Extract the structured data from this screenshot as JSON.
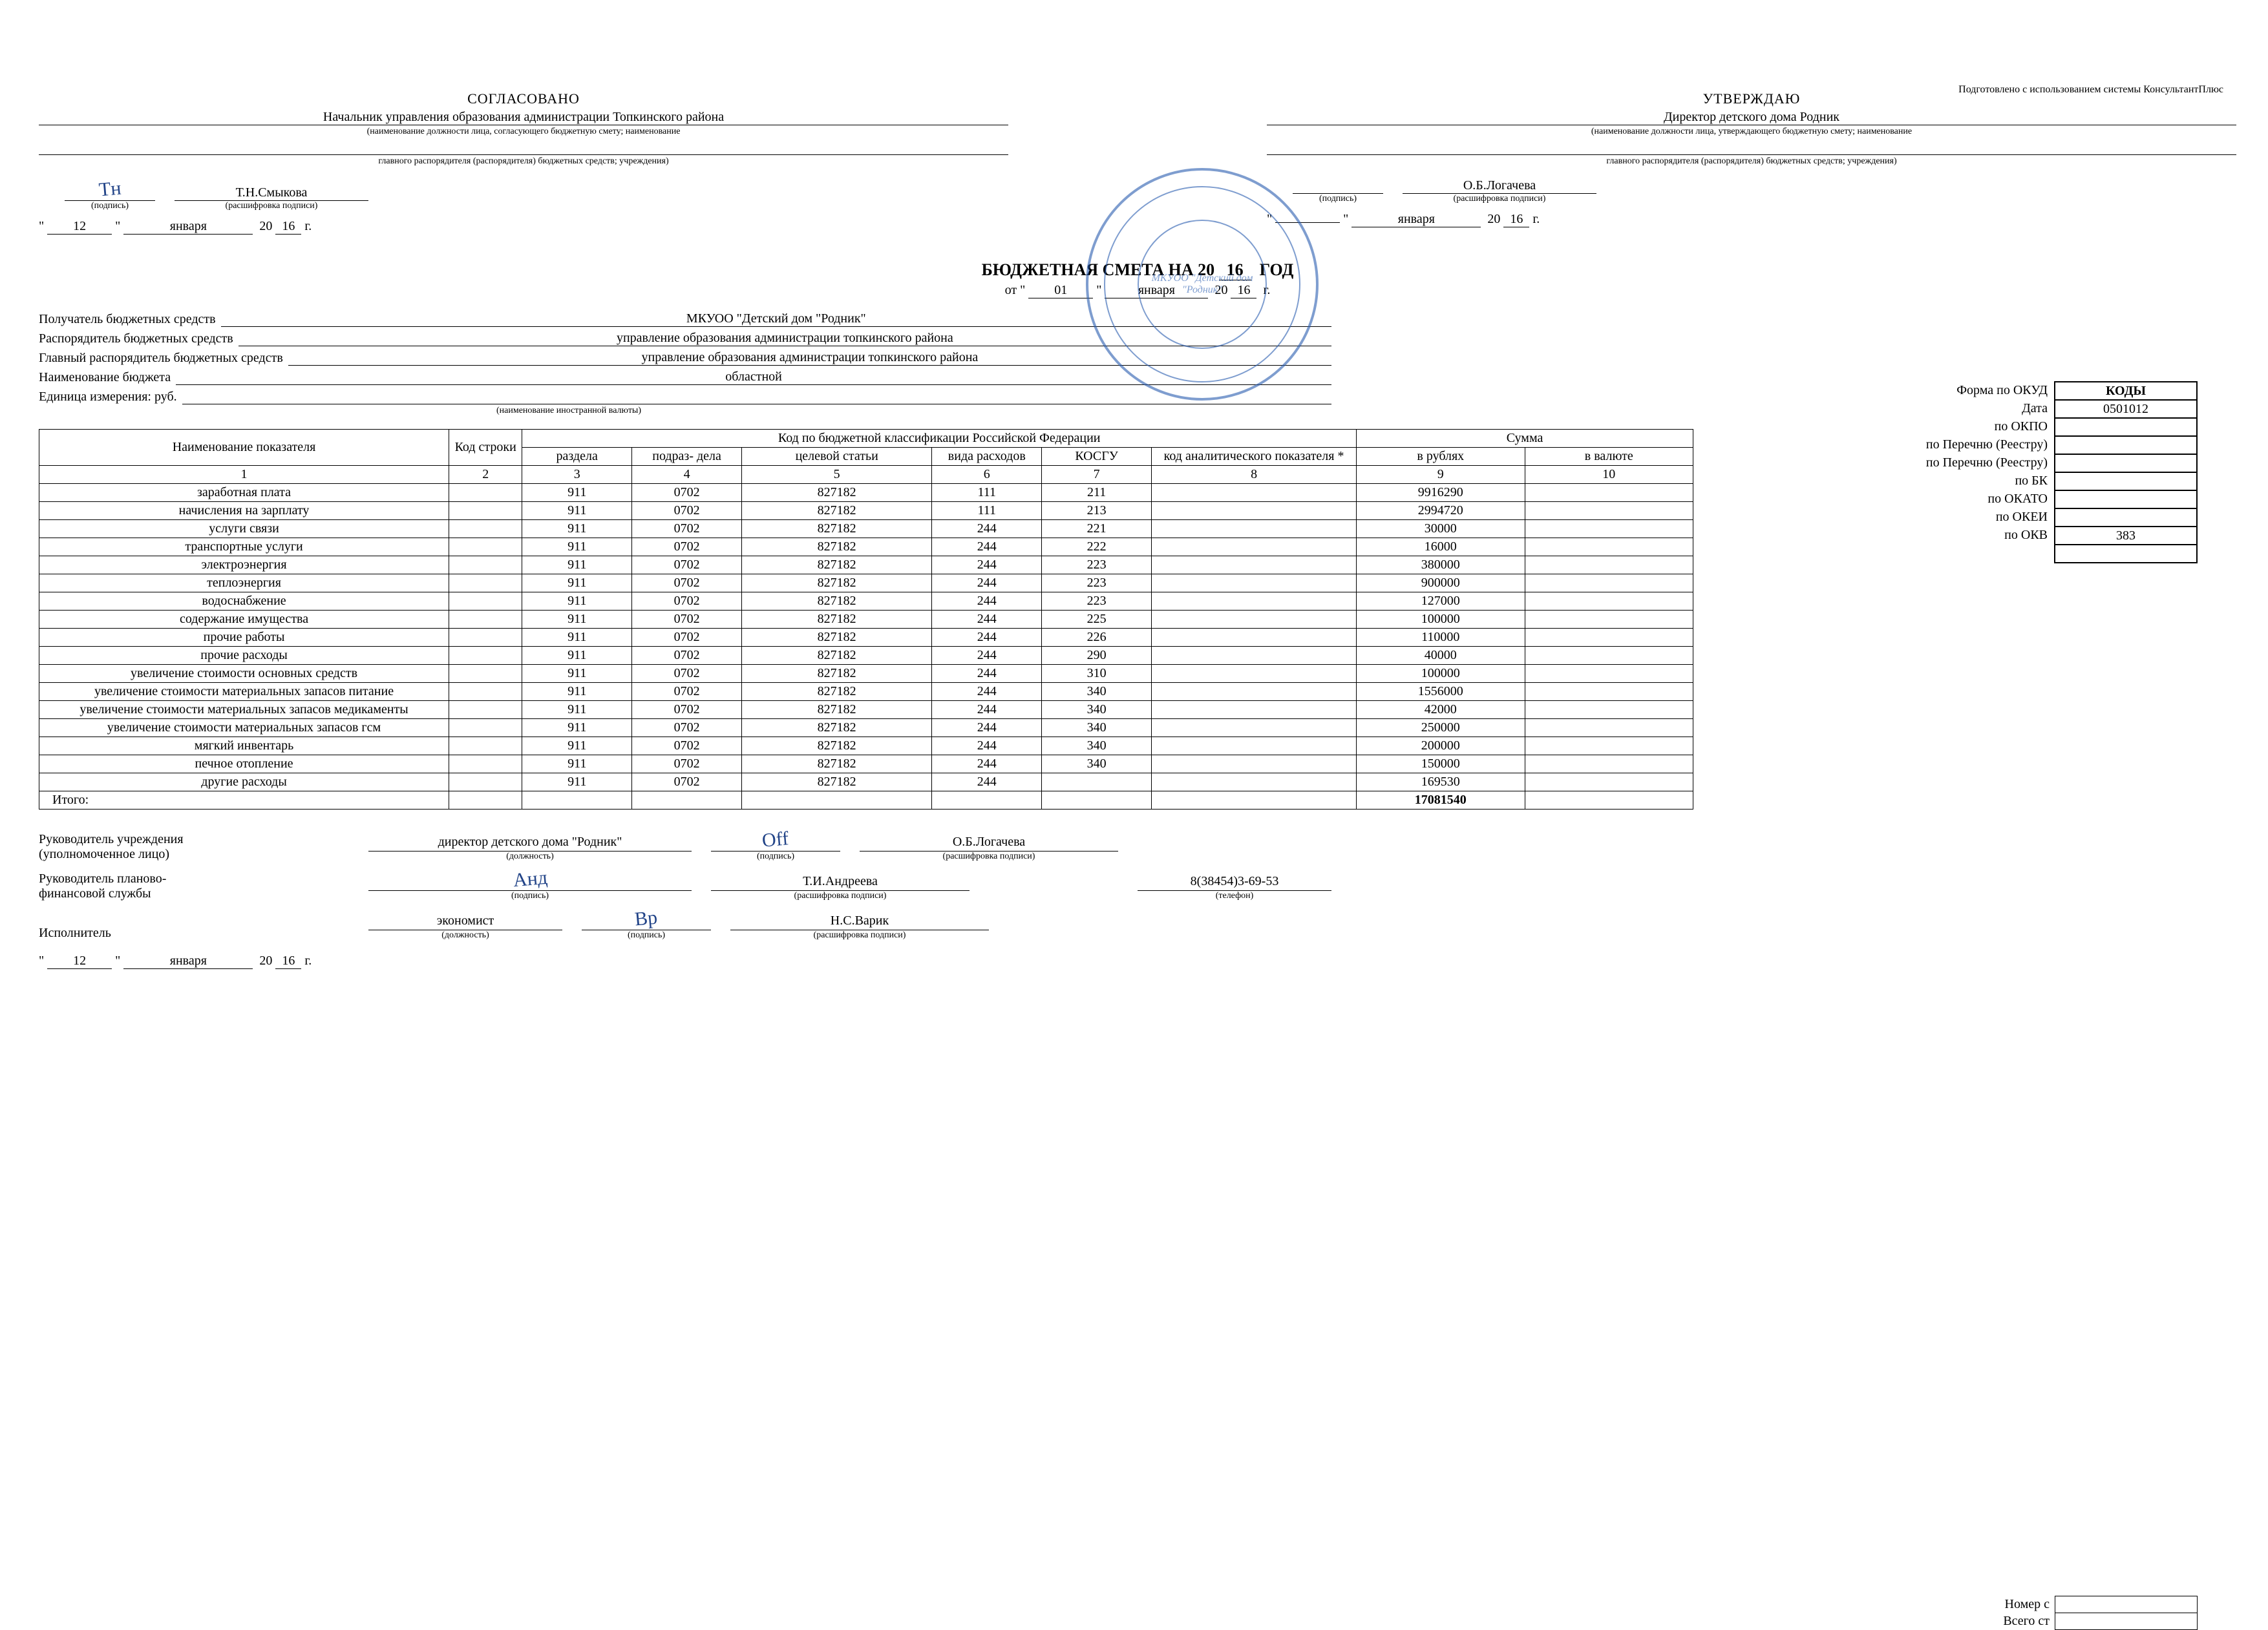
{
  "top_note": "Подготовлено с использованием системы КонсультантПлюс",
  "left": {
    "title": "СОГЛАСОВАНО",
    "position": "Начальник управления образования администрации Топкинского района",
    "pos_hint": "(наименование должности лица, согласующего бюджетную смету; наименование",
    "pos_hint2": "главного распорядителя (распорядителя) бюджетных средств; учреждения)",
    "sign_hint": "(подпись)",
    "name": "Т.Н.Смыкова",
    "name_hint": "(расшифровка подписи)",
    "date_day": "12",
    "date_month": "января",
    "date_year": "16"
  },
  "right": {
    "title": "УТВЕРЖДАЮ",
    "position": "Директор детского дома Родник",
    "pos_hint": "(наименование должности лица, утверждающего бюджетную смету; наименование",
    "pos_hint2": "главного распорядителя (распорядителя) бюджетных средств; учреждения)",
    "sign_hint": "(подпись)",
    "name": "О.Б.Логачева",
    "name_hint": "(расшифровка подписи)",
    "date_day": "",
    "date_month": "января",
    "date_year": "16"
  },
  "stamp_text": "МКУОО \"Детский дом \"Родник\"",
  "main_title_prefix": "БЮДЖЕТНАЯ СМЕТА НА 20",
  "main_title_year": "16",
  "main_title_suffix": "ГОД",
  "sub_from": "от",
  "sub_day": "01",
  "sub_month": "января",
  "sub_year": "16",
  "sub_g": "г.",
  "codes": {
    "header": "КОДЫ",
    "labels": [
      "Форма по ОКУД",
      "Дата",
      "по ОКПО",
      "по Перечню (Реестру)",
      "по Перечню (Реестру)",
      "по БК",
      "по ОКАТО",
      "по ОКЕИ",
      "по ОКВ"
    ],
    "values": [
      "0501012",
      "",
      "",
      "",
      "",
      "",
      "",
      "383",
      ""
    ]
  },
  "details": {
    "recipient_lbl": "Получатель бюджетных средств",
    "recipient_val": "МКУОО \"Детский дом \"Родник\"",
    "manager_lbl": "Распорядитель бюджетных средств",
    "manager_val": "управление образования администрации топкинского района",
    "chief_lbl": "Главный распорядитель бюджетных средств",
    "chief_val": "управление образования администрации топкинского района",
    "budget_lbl": "Наименование бюджета",
    "budget_val": "областной",
    "unit_lbl": "Единица измерения: руб.",
    "foreign_hint": "(наименование иностранной валюты)"
  },
  "table": {
    "head": {
      "name": "Наименование показателя",
      "line": "Код строки",
      "class_group": "Код по бюджетной классификации Российской Федерации",
      "sum_group": "Сумма",
      "razdel": "раздела",
      "podrazdel": "подраз-\nдела",
      "article": "целевой статьи",
      "vid": "вида расходов",
      "kosgu": "КОСГУ",
      "analyt": "код аналитического показателя *",
      "rub": "в рублях",
      "val": "в валюте"
    },
    "numrow": [
      "1",
      "2",
      "3",
      "4",
      "5",
      "6",
      "7",
      "8",
      "9",
      "10"
    ],
    "rows": [
      {
        "name": "заработная плата",
        "line": "",
        "r": "911",
        "p": "0702",
        "a": "827182",
        "v": "111",
        "k": "211",
        "an": "",
        "rub": "9916290",
        "val": ""
      },
      {
        "name": "начисления на зарплату",
        "line": "",
        "r": "911",
        "p": "0702",
        "a": "827182",
        "v": "111",
        "k": "213",
        "an": "",
        "rub": "2994720",
        "val": ""
      },
      {
        "name": "услуги связи",
        "line": "",
        "r": "911",
        "p": "0702",
        "a": "827182",
        "v": "244",
        "k": "221",
        "an": "",
        "rub": "30000",
        "val": ""
      },
      {
        "name": "транспортные услуги",
        "line": "",
        "r": "911",
        "p": "0702",
        "a": "827182",
        "v": "244",
        "k": "222",
        "an": "",
        "rub": "16000",
        "val": ""
      },
      {
        "name": "электроэнергия",
        "line": "",
        "r": "911",
        "p": "0702",
        "a": "827182",
        "v": "244",
        "k": "223",
        "an": "",
        "rub": "380000",
        "val": ""
      },
      {
        "name": "теплоэнергия",
        "line": "",
        "r": "911",
        "p": "0702",
        "a": "827182",
        "v": "244",
        "k": "223",
        "an": "",
        "rub": "900000",
        "val": ""
      },
      {
        "name": "водоснабжение",
        "line": "",
        "r": "911",
        "p": "0702",
        "a": "827182",
        "v": "244",
        "k": "223",
        "an": "",
        "rub": "127000",
        "val": ""
      },
      {
        "name": "содержание имущества",
        "line": "",
        "r": "911",
        "p": "0702",
        "a": "827182",
        "v": "244",
        "k": "225",
        "an": "",
        "rub": "100000",
        "val": ""
      },
      {
        "name": "прочие работы",
        "line": "",
        "r": "911",
        "p": "0702",
        "a": "827182",
        "v": "244",
        "k": "226",
        "an": "",
        "rub": "110000",
        "val": ""
      },
      {
        "name": "прочие расходы",
        "line": "",
        "r": "911",
        "p": "0702",
        "a": "827182",
        "v": "244",
        "k": "290",
        "an": "",
        "rub": "40000",
        "val": ""
      },
      {
        "name": "увеличение стоимости основных средств",
        "line": "",
        "r": "911",
        "p": "0702",
        "a": "827182",
        "v": "244",
        "k": "310",
        "an": "",
        "rub": "100000",
        "val": ""
      },
      {
        "name": "увеличение стоимости материальных запасов питание",
        "line": "",
        "r": "911",
        "p": "0702",
        "a": "827182",
        "v": "244",
        "k": "340",
        "an": "",
        "rub": "1556000",
        "val": ""
      },
      {
        "name": "увеличение стоимости материальных запасов медикаменты",
        "line": "",
        "r": "911",
        "p": "0702",
        "a": "827182",
        "v": "244",
        "k": "340",
        "an": "",
        "rub": "42000",
        "val": ""
      },
      {
        "name": "увеличение стоимости материальных запасов гсм",
        "line": "",
        "r": "911",
        "p": "0702",
        "a": "827182",
        "v": "244",
        "k": "340",
        "an": "",
        "rub": "250000",
        "val": ""
      },
      {
        "name": "мягкий инвентарь",
        "line": "",
        "r": "911",
        "p": "0702",
        "a": "827182",
        "v": "244",
        "k": "340",
        "an": "",
        "rub": "200000",
        "val": ""
      },
      {
        "name": "печное отопление",
        "line": "",
        "r": "911",
        "p": "0702",
        "a": "827182",
        "v": "244",
        "k": "340",
        "an": "",
        "rub": "150000",
        "val": ""
      },
      {
        "name": "другие расходы",
        "line": "",
        "r": "911",
        "p": "0702",
        "a": "827182",
        "v": "244",
        "k": "",
        "an": "",
        "rub": "169530",
        "val": ""
      }
    ],
    "total_label": "Итого:",
    "total_rub": "17081540"
  },
  "footer": {
    "head_lbl1": "Руководитель учреждения",
    "head_lbl2": "(уполномоченное лицо)",
    "head_pos": "директор детского дома \"Родник\"",
    "pos_hint": "(должность)",
    "sign_hint": "(подпись)",
    "head_name": "О.Б.Логачева",
    "name_hint": "(расшифровка подписи)",
    "fin_lbl1": "Руководитель планово-",
    "fin_lbl2": "финансовой службы",
    "fin_name": "Т.И.Андреева",
    "exec_lbl": "Исполнитель",
    "exec_pos": "экономист",
    "exec_name": "Н.С.Варик",
    "phone": "8(38454)3-69-53",
    "phone_hint": "(телефон)",
    "date_day": "12",
    "date_month": "января",
    "date_year": "16",
    "nomer": "Номер с",
    "vsego": "Всего ст"
  }
}
